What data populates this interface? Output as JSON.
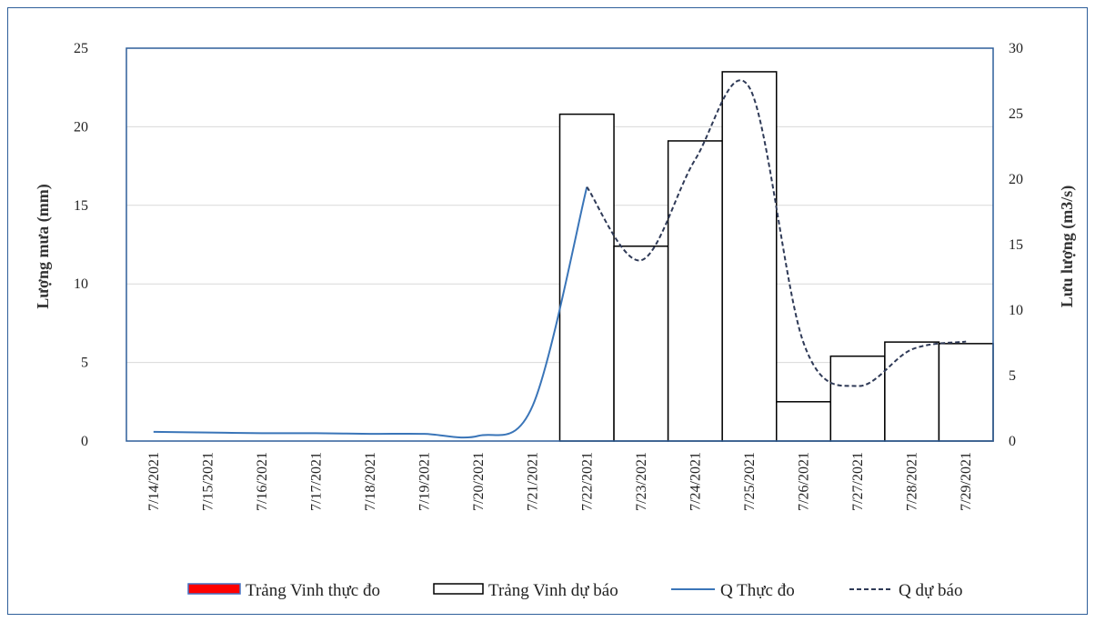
{
  "chart_data": {
    "type": "bar",
    "title": "",
    "categories": [
      "7/14/2021",
      "7/15/2021",
      "7/16/2021",
      "7/17/2021",
      "7/18/2021",
      "7/19/2021",
      "7/20/2021",
      "7/21/2021",
      "7/22/2021",
      "7/23/2021",
      "7/24/2021",
      "7/25/2021",
      "7/26/2021",
      "7/27/2021",
      "7/28/2021",
      "7/29/2021"
    ],
    "y_left": {
      "label": "Lượng mưa (mm)",
      "ylim": [
        0,
        25
      ],
      "ticks": [
        "0",
        "5",
        "10",
        "15",
        "20",
        "25"
      ]
    },
    "y_right": {
      "label": "Lưu lượng (m3/s)",
      "ylim": [
        0,
        30
      ],
      "ticks": [
        "0",
        "5",
        "10",
        "15",
        "20",
        "25",
        "30"
      ]
    },
    "grid": true,
    "legend_position": "bottom",
    "series": [
      {
        "name": "Trảng Vinh thực đo",
        "kind": "bar",
        "axis": "left",
        "color": "#ff0000",
        "border": "#4472c4",
        "values": [
          0,
          0,
          0,
          0,
          0,
          0,
          0,
          0,
          0,
          0,
          0,
          0,
          0,
          0,
          0,
          0
        ]
      },
      {
        "name": "Trảng Vinh dự báo",
        "kind": "bar",
        "axis": "left",
        "color": "#ffffff",
        "border": "#000000",
        "values": [
          0,
          0,
          0,
          0,
          0,
          0,
          0,
          0,
          20.8,
          12.4,
          19.1,
          23.5,
          2.5,
          5.4,
          6.3,
          6.2
        ]
      },
      {
        "name": "Q Thực đo",
        "kind": "line",
        "axis": "right",
        "color": "#3a75b8",
        "dash": "solid",
        "values": [
          0.7,
          0.65,
          0.6,
          0.6,
          0.55,
          0.55,
          0.4,
          2.7,
          19.4,
          null,
          null,
          null,
          null,
          null,
          null,
          null
        ]
      },
      {
        "name": "Q dự báo",
        "kind": "line",
        "axis": "right",
        "color": "#2f3a57",
        "dash": "dashed",
        "values": [
          null,
          null,
          null,
          null,
          null,
          null,
          null,
          null,
          19.4,
          13.8,
          21.5,
          27,
          7.5,
          4.2,
          7,
          7.6
        ]
      }
    ]
  }
}
